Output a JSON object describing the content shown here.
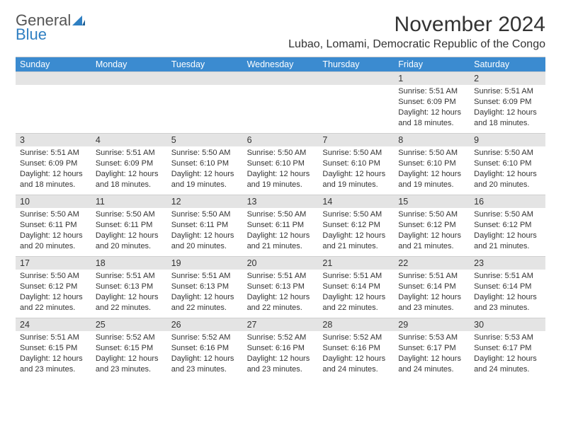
{
  "brand": {
    "word1": "General",
    "word2": "Blue",
    "sail_color": "#2f7fc2",
    "text_gray": "#555555"
  },
  "title": "November 2024",
  "location": "Lubao, Lomami, Democratic Republic of the Congo",
  "colors": {
    "header_bg": "#3b8bd0",
    "header_text": "#ffffff",
    "daynum_bg": "#e4e4e4",
    "border": "#cfcfcf",
    "body_text": "#333333"
  },
  "weekdays": [
    "Sunday",
    "Monday",
    "Tuesday",
    "Wednesday",
    "Thursday",
    "Friday",
    "Saturday"
  ],
  "weeks": [
    [
      {
        "n": "",
        "lines": []
      },
      {
        "n": "",
        "lines": []
      },
      {
        "n": "",
        "lines": []
      },
      {
        "n": "",
        "lines": []
      },
      {
        "n": "",
        "lines": []
      },
      {
        "n": "1",
        "lines": [
          "Sunrise: 5:51 AM",
          "Sunset: 6:09 PM",
          "Daylight: 12 hours",
          "and 18 minutes."
        ]
      },
      {
        "n": "2",
        "lines": [
          "Sunrise: 5:51 AM",
          "Sunset: 6:09 PM",
          "Daylight: 12 hours",
          "and 18 minutes."
        ]
      }
    ],
    [
      {
        "n": "3",
        "lines": [
          "Sunrise: 5:51 AM",
          "Sunset: 6:09 PM",
          "Daylight: 12 hours",
          "and 18 minutes."
        ]
      },
      {
        "n": "4",
        "lines": [
          "Sunrise: 5:51 AM",
          "Sunset: 6:09 PM",
          "Daylight: 12 hours",
          "and 18 minutes."
        ]
      },
      {
        "n": "5",
        "lines": [
          "Sunrise: 5:50 AM",
          "Sunset: 6:10 PM",
          "Daylight: 12 hours",
          "and 19 minutes."
        ]
      },
      {
        "n": "6",
        "lines": [
          "Sunrise: 5:50 AM",
          "Sunset: 6:10 PM",
          "Daylight: 12 hours",
          "and 19 minutes."
        ]
      },
      {
        "n": "7",
        "lines": [
          "Sunrise: 5:50 AM",
          "Sunset: 6:10 PM",
          "Daylight: 12 hours",
          "and 19 minutes."
        ]
      },
      {
        "n": "8",
        "lines": [
          "Sunrise: 5:50 AM",
          "Sunset: 6:10 PM",
          "Daylight: 12 hours",
          "and 19 minutes."
        ]
      },
      {
        "n": "9",
        "lines": [
          "Sunrise: 5:50 AM",
          "Sunset: 6:10 PM",
          "Daylight: 12 hours",
          "and 20 minutes."
        ]
      }
    ],
    [
      {
        "n": "10",
        "lines": [
          "Sunrise: 5:50 AM",
          "Sunset: 6:11 PM",
          "Daylight: 12 hours",
          "and 20 minutes."
        ]
      },
      {
        "n": "11",
        "lines": [
          "Sunrise: 5:50 AM",
          "Sunset: 6:11 PM",
          "Daylight: 12 hours",
          "and 20 minutes."
        ]
      },
      {
        "n": "12",
        "lines": [
          "Sunrise: 5:50 AM",
          "Sunset: 6:11 PM",
          "Daylight: 12 hours",
          "and 20 minutes."
        ]
      },
      {
        "n": "13",
        "lines": [
          "Sunrise: 5:50 AM",
          "Sunset: 6:11 PM",
          "Daylight: 12 hours",
          "and 21 minutes."
        ]
      },
      {
        "n": "14",
        "lines": [
          "Sunrise: 5:50 AM",
          "Sunset: 6:12 PM",
          "Daylight: 12 hours",
          "and 21 minutes."
        ]
      },
      {
        "n": "15",
        "lines": [
          "Sunrise: 5:50 AM",
          "Sunset: 6:12 PM",
          "Daylight: 12 hours",
          "and 21 minutes."
        ]
      },
      {
        "n": "16",
        "lines": [
          "Sunrise: 5:50 AM",
          "Sunset: 6:12 PM",
          "Daylight: 12 hours",
          "and 21 minutes."
        ]
      }
    ],
    [
      {
        "n": "17",
        "lines": [
          "Sunrise: 5:50 AM",
          "Sunset: 6:12 PM",
          "Daylight: 12 hours",
          "and 22 minutes."
        ]
      },
      {
        "n": "18",
        "lines": [
          "Sunrise: 5:51 AM",
          "Sunset: 6:13 PM",
          "Daylight: 12 hours",
          "and 22 minutes."
        ]
      },
      {
        "n": "19",
        "lines": [
          "Sunrise: 5:51 AM",
          "Sunset: 6:13 PM",
          "Daylight: 12 hours",
          "and 22 minutes."
        ]
      },
      {
        "n": "20",
        "lines": [
          "Sunrise: 5:51 AM",
          "Sunset: 6:13 PM",
          "Daylight: 12 hours",
          "and 22 minutes."
        ]
      },
      {
        "n": "21",
        "lines": [
          "Sunrise: 5:51 AM",
          "Sunset: 6:14 PM",
          "Daylight: 12 hours",
          "and 22 minutes."
        ]
      },
      {
        "n": "22",
        "lines": [
          "Sunrise: 5:51 AM",
          "Sunset: 6:14 PM",
          "Daylight: 12 hours",
          "and 23 minutes."
        ]
      },
      {
        "n": "23",
        "lines": [
          "Sunrise: 5:51 AM",
          "Sunset: 6:14 PM",
          "Daylight: 12 hours",
          "and 23 minutes."
        ]
      }
    ],
    [
      {
        "n": "24",
        "lines": [
          "Sunrise: 5:51 AM",
          "Sunset: 6:15 PM",
          "Daylight: 12 hours",
          "and 23 minutes."
        ]
      },
      {
        "n": "25",
        "lines": [
          "Sunrise: 5:52 AM",
          "Sunset: 6:15 PM",
          "Daylight: 12 hours",
          "and 23 minutes."
        ]
      },
      {
        "n": "26",
        "lines": [
          "Sunrise: 5:52 AM",
          "Sunset: 6:16 PM",
          "Daylight: 12 hours",
          "and 23 minutes."
        ]
      },
      {
        "n": "27",
        "lines": [
          "Sunrise: 5:52 AM",
          "Sunset: 6:16 PM",
          "Daylight: 12 hours",
          "and 23 minutes."
        ]
      },
      {
        "n": "28",
        "lines": [
          "Sunrise: 5:52 AM",
          "Sunset: 6:16 PM",
          "Daylight: 12 hours",
          "and 24 minutes."
        ]
      },
      {
        "n": "29",
        "lines": [
          "Sunrise: 5:53 AM",
          "Sunset: 6:17 PM",
          "Daylight: 12 hours",
          "and 24 minutes."
        ]
      },
      {
        "n": "30",
        "lines": [
          "Sunrise: 5:53 AM",
          "Sunset: 6:17 PM",
          "Daylight: 12 hours",
          "and 24 minutes."
        ]
      }
    ]
  ]
}
